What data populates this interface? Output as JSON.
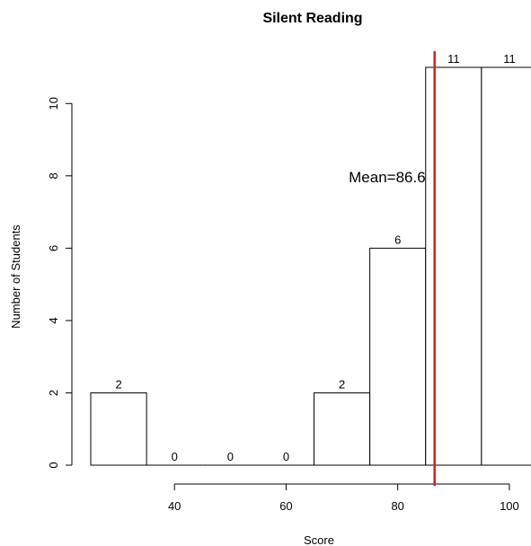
{
  "chart_data": {
    "type": "bar",
    "title": "Silent Reading",
    "xlabel": "Score",
    "ylabel": "Number of Students",
    "bins": [
      {
        "start": 25,
        "end": 35,
        "count": 2
      },
      {
        "start": 35,
        "end": 45,
        "count": 0
      },
      {
        "start": 45,
        "end": 55,
        "count": 0
      },
      {
        "start": 55,
        "end": 65,
        "count": 0
      },
      {
        "start": 65,
        "end": 75,
        "count": 2
      },
      {
        "start": 75,
        "end": 85,
        "count": 6
      },
      {
        "start": 85,
        "end": 95,
        "count": 11
      },
      {
        "start": 95,
        "end": 105,
        "count": 11
      }
    ],
    "x_ticks": [
      40,
      60,
      80,
      100
    ],
    "y_ticks": [
      0,
      2,
      4,
      6,
      8,
      10
    ],
    "xlim": [
      25,
      105
    ],
    "ylim": [
      0,
      11
    ],
    "mean": {
      "value": 86.6,
      "label": "Mean=86.6",
      "color": "#cc2222"
    },
    "grid": false,
    "legend": "none"
  }
}
